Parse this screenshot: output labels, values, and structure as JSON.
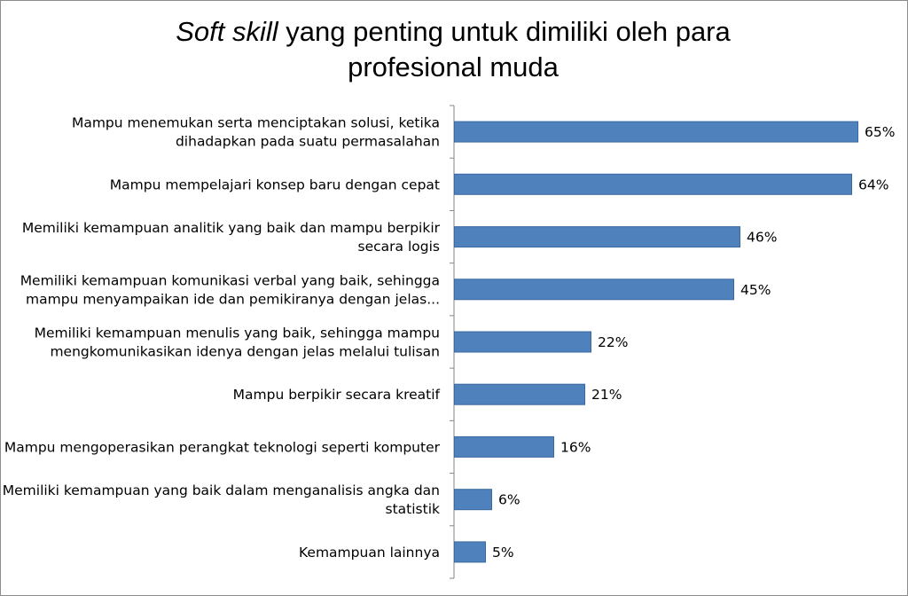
{
  "chart_data": {
    "type": "bar",
    "orientation": "horizontal",
    "title": {
      "italic_part": "Soft skill",
      "line1_rest": " yang penting untuk dimiliki oleh para",
      "line2": "profesional muda"
    },
    "categories": [
      [
        "Mampu menemukan serta menciptakan solusi, ketika",
        "dihadapkan pada suatu permasalahan"
      ],
      [
        "Mampu mempelajari konsep baru dengan cepat"
      ],
      [
        "Memiliki kemampuan analitik yang baik dan mampu berpikir",
        "secara logis"
      ],
      [
        "Memiliki kemampuan komunikasi verbal yang baik, sehingga",
        "mampu menyampaikan ide dan pemikiranya dengan jelas..."
      ],
      [
        "Memiliki kemampuan menulis yang baik, sehingga mampu",
        "mengkomunikasikan idenya dengan jelas melalui tulisan"
      ],
      [
        "Mampu berpikir secara kreatif"
      ],
      [
        "Mampu mengoperasikan perangkat teknologi seperti komputer"
      ],
      [
        "Memiliki kemampuan yang baik dalam menganalisis angka dan",
        "statistik"
      ],
      [
        "Kemampuan lainnya"
      ]
    ],
    "values": [
      65,
      64,
      46,
      45,
      22,
      21,
      16,
      6,
      5
    ],
    "data_labels": [
      "65%",
      "64%",
      "46%",
      "45%",
      "22%",
      "21%",
      "16%",
      "6%",
      "5%"
    ],
    "unit": "%",
    "xlim": [
      0,
      70
    ],
    "bar_color": "#4f81bd",
    "bar_border_color": "#3a6a9f",
    "axis_color": "#868686",
    "grid": false,
    "legend": "none",
    "value_axis_visible": false
  }
}
